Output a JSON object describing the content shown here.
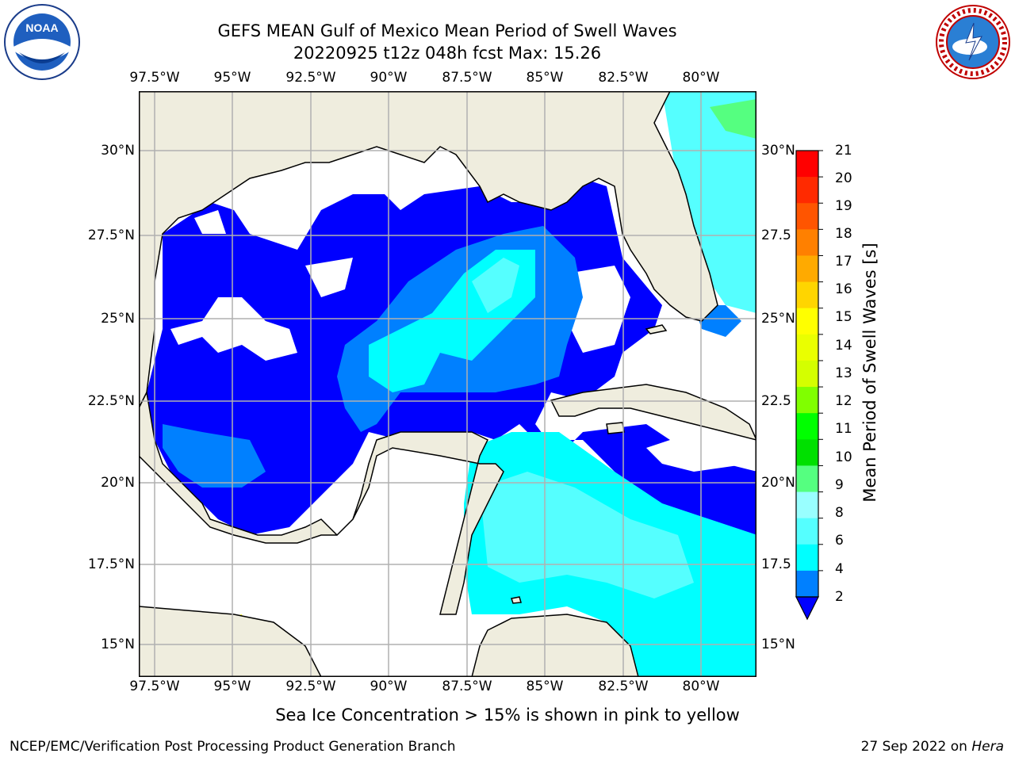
{
  "header": {
    "title_line1": "GEFS MEAN Gulf of Mexico Mean Period of Swell Waves",
    "title_line2": "20220925 t12z 048h fcst   Max: 15.26"
  },
  "map": {
    "lon_labels": [
      "97.5°W",
      "95°W",
      "92.5°W",
      "90°W",
      "87.5°W",
      "85°W",
      "82.5°W",
      "80°W"
    ],
    "lat_labels_left": [
      "30°N",
      "27.5°N",
      "25°N",
      "22.5°N",
      "20°N",
      "17.5°N",
      "15°N"
    ],
    "lat_labels_right": [
      "30°N",
      "27.5",
      "25°N",
      "22.5",
      "20°N",
      "17.5",
      "15°N"
    ],
    "land_color": "#efedde",
    "grid_color": "#b0b0b0"
  },
  "colorbar": {
    "label": "Mean Period of Swell Waves [s]",
    "ticks": [
      "21",
      "20",
      "19",
      "18",
      "17",
      "16",
      "15",
      "14",
      "13",
      "12",
      "11",
      "10",
      "9",
      "8",
      "6",
      "4",
      "2"
    ],
    "colors": [
      "#ff0000",
      "#ff2a00",
      "#ff5500",
      "#ff8000",
      "#ffaa00",
      "#ffd500",
      "#ffff00",
      "#eaff00",
      "#d4ff00",
      "#80ff00",
      "#00ff00",
      "#00e000",
      "#55ff80",
      "#99ffff",
      "#55ffff",
      "#00ffff",
      "#0080ff",
      "#0000ff"
    ]
  },
  "footer": {
    "note": "Sea Ice Concentration > 15% is shown in pink to yellow",
    "credit_left": "NCEP/EMC/Verification Post Processing Product Generation Branch",
    "credit_right_date": "27 Sep 2022 on",
    "credit_right_host": "Hera"
  },
  "logos": {
    "left": "noaa-logo",
    "right": "nws-logo",
    "left_text": "NOAA",
    "right_text": "NATIONAL WEATHER SERVICE"
  }
}
